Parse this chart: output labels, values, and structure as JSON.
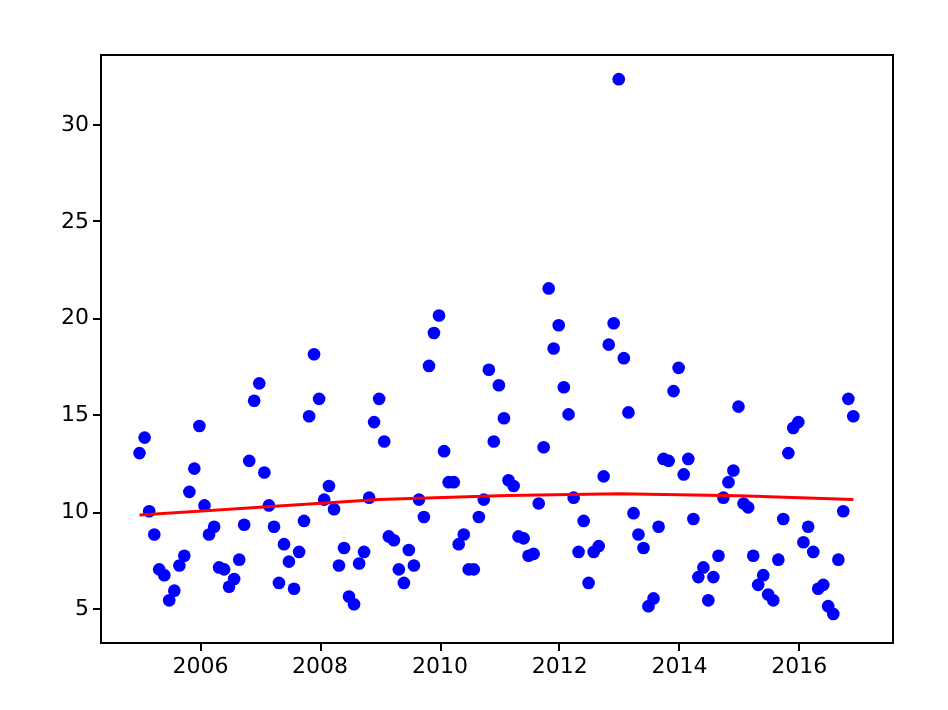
{
  "chart_data": {
    "type": "scatter",
    "grid": false,
    "xlim": [
      "2004-05-05",
      "2017-07-25"
    ],
    "xticks": [
      "2006",
      "2008",
      "2010",
      "2012",
      "2014",
      "2016"
    ],
    "ylim": [
      3.25,
      33.6
    ],
    "yticks": [
      5,
      10,
      15,
      20,
      25,
      30
    ],
    "series": [
      {
        "marker": "circle",
        "color": "#0000ff",
        "x": [
          "2005-01",
          "2005-02",
          "2005-03",
          "2005-04",
          "2005-05",
          "2005-06",
          "2005-07",
          "2005-08",
          "2005-09",
          "2005-10",
          "2005-11",
          "2005-12",
          "2006-01",
          "2006-02",
          "2006-03",
          "2006-04",
          "2006-05",
          "2006-06",
          "2006-07",
          "2006-08",
          "2006-09",
          "2006-10",
          "2006-11",
          "2006-12",
          "2007-01",
          "2007-02",
          "2007-03",
          "2007-04",
          "2007-05",
          "2007-06",
          "2007-07",
          "2007-08",
          "2007-09",
          "2007-10",
          "2007-11",
          "2007-12",
          "2008-01",
          "2008-02",
          "2008-03",
          "2008-04",
          "2008-05",
          "2008-06",
          "2008-07",
          "2008-08",
          "2008-09",
          "2008-10",
          "2008-11",
          "2008-12",
          "2009-01",
          "2009-02",
          "2009-03",
          "2009-04",
          "2009-05",
          "2009-06",
          "2009-07",
          "2009-08",
          "2009-09",
          "2009-10",
          "2009-11",
          "2009-12",
          "2010-01",
          "2010-02",
          "2010-03",
          "2010-04",
          "2010-05",
          "2010-06",
          "2010-07",
          "2010-08",
          "2010-09",
          "2010-10",
          "2010-11",
          "2010-12",
          "2011-01",
          "2011-02",
          "2011-03",
          "2011-04",
          "2011-05",
          "2011-06",
          "2011-07",
          "2011-08",
          "2011-09",
          "2011-10",
          "2011-11",
          "2011-12",
          "2012-01",
          "2012-02",
          "2012-03",
          "2012-04",
          "2012-05",
          "2012-06",
          "2012-07",
          "2012-08",
          "2012-09",
          "2012-10",
          "2012-11",
          "2012-12",
          "2013-01",
          "2013-02",
          "2013-03",
          "2013-04",
          "2013-05",
          "2013-06",
          "2013-07",
          "2013-08",
          "2013-09",
          "2013-10",
          "2013-11",
          "2013-12",
          "2014-01",
          "2014-02",
          "2014-03",
          "2014-04",
          "2014-05",
          "2014-06",
          "2014-07",
          "2014-08",
          "2014-09",
          "2014-10",
          "2014-11",
          "2014-12",
          "2015-01",
          "2015-02",
          "2015-03",
          "2015-04",
          "2015-05",
          "2015-06",
          "2015-07",
          "2015-08",
          "2015-09",
          "2015-10",
          "2015-11",
          "2015-12",
          "2016-01",
          "2016-02",
          "2016-03",
          "2016-04",
          "2016-05",
          "2016-06",
          "2016-07",
          "2016-08",
          "2016-09",
          "2016-10",
          "2016-11",
          "2016-12"
        ],
        "values": [
          13.0,
          13.8,
          10.0,
          8.8,
          7.0,
          6.7,
          5.4,
          5.9,
          7.2,
          7.7,
          11.0,
          12.2,
          14.4,
          10.3,
          8.8,
          9.2,
          7.1,
          7.0,
          6.1,
          6.5,
          7.5,
          9.3,
          12.6,
          15.7,
          16.6,
          12.0,
          10.3,
          9.2,
          6.3,
          8.3,
          7.4,
          6.0,
          7.9,
          9.5,
          14.9,
          18.1,
          15.8,
          10.6,
          11.3,
          10.1,
          7.2,
          8.1,
          5.6,
          5.2,
          7.3,
          7.9,
          10.7,
          14.6,
          15.8,
          13.6,
          8.7,
          8.5,
          7.0,
          6.3,
          8.0,
          7.2,
          10.6,
          9.7,
          17.5,
          19.2,
          20.1,
          13.1,
          11.5,
          11.5,
          8.3,
          8.8,
          7.0,
          7.0,
          9.7,
          10.6,
          17.3,
          13.6,
          16.5,
          14.8,
          11.6,
          11.3,
          8.7,
          8.6,
          7.7,
          7.8,
          10.4,
          13.3,
          21.5,
          18.4,
          19.6,
          16.4,
          15.0,
          10.7,
          7.9,
          9.5,
          6.3,
          7.9,
          8.2,
          11.8,
          18.6,
          19.7,
          32.3,
          17.9,
          15.1,
          9.9,
          8.8,
          8.1,
          5.1,
          5.5,
          9.2,
          12.7,
          12.6,
          16.2,
          17.4,
          11.9,
          12.7,
          9.6,
          6.6,
          7.1,
          5.4,
          6.6,
          7.7,
          10.7,
          11.5,
          12.1,
          15.4,
          10.4,
          10.2,
          7.7,
          6.2,
          6.7,
          5.7,
          5.4,
          7.5,
          9.6,
          13.0,
          14.3,
          14.6,
          8.4,
          9.2,
          7.9,
          6.0,
          6.2,
          5.1,
          4.7,
          7.5,
          10.0,
          15.8,
          14.9
        ]
      },
      {
        "type": "line",
        "color": "#ff0000",
        "x": [
          "2005-01",
          "2007-01",
          "2009-01",
          "2011-01",
          "2013-01",
          "2015-01",
          "2016-12"
        ],
        "values": [
          9.8,
          10.2,
          10.6,
          10.8,
          10.9,
          10.8,
          10.6
        ]
      }
    ]
  }
}
